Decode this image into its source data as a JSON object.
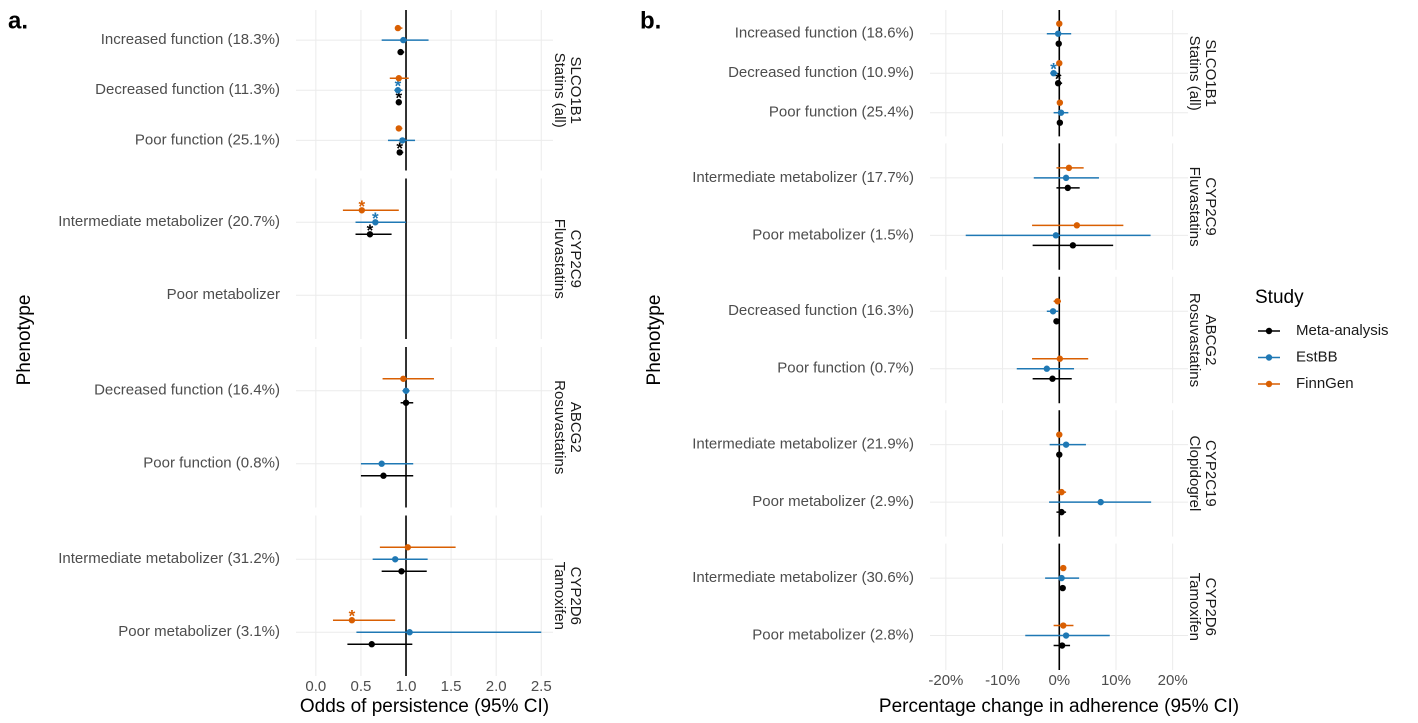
{
  "legend": {
    "title": "Study",
    "entries": [
      {
        "name": "Meta-analysis",
        "color": "#000000"
      },
      {
        "name": "EstBB",
        "color": "#1f78b4"
      },
      {
        "name": "FinnGen",
        "color": "#d95f02"
      }
    ]
  },
  "chart_data": [
    {
      "type": "forest",
      "panel_label": "a.",
      "xlabel": "Odds of persistence (95% CI)",
      "ylabel": "Phenotype",
      "xlim": [
        -0.22,
        2.63
      ],
      "xticks": [
        {
          "value": 0,
          "label": "0.0"
        },
        0.5,
        {
          "value": 1,
          "label": "1.0"
        },
        1.5,
        {
          "value": 2,
          "label": "2.0"
        },
        2.5
      ],
      "ref_line": 1,
      "grid": true,
      "facets": [
        {
          "gene": "SLCO1B1",
          "drug": "Statins (all)",
          "rows": [
            {
              "label": "Increased function (18.3%)",
              "points": [
                {
                  "est": 0.94,
                  "lo": 0.91,
                  "hi": 0.98
                },
                {
                  "est": 0.97,
                  "lo": 0.73,
                  "hi": 1.25
                },
                {
                  "est": 0.91,
                  "lo": 0.88,
                  "hi": 0.96
                }
              ]
            },
            {
              "label": "Decreased function (11.3%)",
              "points": [
                {
                  "est": 0.92,
                  "lo": 0.89,
                  "hi": 0.95,
                  "mark": "*"
                },
                {
                  "est": 0.91,
                  "lo": 0.87,
                  "hi": 0.96,
                  "mark": "*"
                },
                {
                  "est": 0.92,
                  "lo": 0.82,
                  "hi": 1.03
                }
              ]
            },
            {
              "label": "Poor function (25.1%)",
              "points": [
                {
                  "est": 0.93,
                  "lo": 0.9,
                  "hi": 0.97,
                  "mark": "*"
                },
                {
                  "est": 0.96,
                  "lo": 0.8,
                  "hi": 1.1
                },
                {
                  "est": 0.92,
                  "lo": 0.9,
                  "hi": 0.96
                }
              ]
            }
          ]
        },
        {
          "gene": "CYP2C9",
          "drug": "Fluvastatins",
          "rows": [
            {
              "label": "Intermediate metabolizer (20.7%)",
              "points": [
                {
                  "est": 0.6,
                  "lo": 0.44,
                  "hi": 0.84,
                  "mark": "*"
                },
                {
                  "est": 0.66,
                  "lo": 0.44,
                  "hi": 1.0,
                  "mark": "*"
                },
                {
                  "est": 0.51,
                  "lo": 0.3,
                  "hi": 0.92,
                  "mark": "*"
                }
              ]
            },
            {
              "label": "Poor metabolizer",
              "points": [
                null,
                null,
                null
              ]
            }
          ]
        },
        {
          "gene": "ABCG2",
          "drug": "Rosuvastatins",
          "rows": [
            {
              "label": "Decreased function (16.4%)",
              "points": [
                {
                  "est": 1.0,
                  "lo": 0.94,
                  "hi": 1.08
                },
                {
                  "est": 1.0,
                  "lo": 0.96,
                  "hi": 1.04
                },
                {
                  "est": 0.97,
                  "lo": 0.74,
                  "hi": 1.31
                }
              ]
            },
            {
              "label": "Poor function (0.8%)",
              "points": [
                {
                  "est": 0.75,
                  "lo": 0.5,
                  "hi": 1.08
                },
                {
                  "est": 0.73,
                  "lo": 0.5,
                  "hi": 1.08
                },
                null
              ]
            }
          ]
        },
        {
          "gene": "CYP2D6",
          "drug": "Tamoxifen",
          "rows": [
            {
              "label": "Intermediate metabolizer (31.2%)",
              "points": [
                {
                  "est": 0.95,
                  "lo": 0.73,
                  "hi": 1.23
                },
                {
                  "est": 0.88,
                  "lo": 0.63,
                  "hi": 1.24
                },
                {
                  "est": 1.02,
                  "lo": 0.71,
                  "hi": 1.55
                }
              ]
            },
            {
              "label": "Poor metabolizer (3.1%)",
              "points": [
                {
                  "est": 0.62,
                  "lo": 0.35,
                  "hi": 1.07
                },
                {
                  "est": 1.04,
                  "lo": 0.45,
                  "hi": 2.5
                },
                {
                  "est": 0.4,
                  "lo": 0.19,
                  "hi": 0.88,
                  "mark": "*"
                }
              ]
            }
          ]
        }
      ]
    },
    {
      "type": "forest",
      "panel_label": "b.",
      "xlabel": "Percentage change in adherence (95% CI)",
      "ylabel": "Phenotype",
      "xlim": [
        -22.8,
        22.7
      ],
      "xticks": [
        {
          "value": -20,
          "label": "-20%"
        },
        {
          "value": -10,
          "label": "-10%"
        },
        {
          "value": 0,
          "label": "0%"
        },
        {
          "value": 10,
          "label": "10%"
        },
        {
          "value": 20,
          "label": "20%"
        }
      ],
      "ref_line": 0,
      "grid": true,
      "facets": [
        {
          "gene": "SLCO1B1",
          "drug": "Statins (all)",
          "rows": [
            {
              "label": "Increased function (18.6%)",
              "points": [
                {
                  "est": -0.1,
                  "lo": -0.4,
                  "hi": 0.2
                },
                {
                  "est": -0.2,
                  "lo": -2.2,
                  "hi": 2.1
                },
                {
                  "est": 0,
                  "lo": -0.3,
                  "hi": 0.3
                }
              ]
            },
            {
              "label": "Decreased function (10.9%)",
              "points": [
                {
                  "est": -0.2,
                  "lo": -0.5,
                  "hi": 0.5,
                  "mark": "*"
                },
                {
                  "est": -1,
                  "lo": -1.6,
                  "hi": -0.3,
                  "mark": "*"
                },
                {
                  "est": 0,
                  "lo": -0.5,
                  "hi": 0.4
                }
              ]
            },
            {
              "label": "Poor function (25.4%)",
              "points": [
                {
                  "est": 0.1,
                  "lo": -0.2,
                  "hi": 0.4
                },
                {
                  "est": 0.3,
                  "lo": -1,
                  "hi": 1.6
                },
                {
                  "est": 0.1,
                  "lo": -0.2,
                  "hi": 0.4
                }
              ]
            }
          ]
        },
        {
          "gene": "CYP2C9",
          "drug": "Fluvastatins",
          "rows": [
            {
              "label": "Intermediate metabolizer (17.7%)",
              "points": [
                {
                  "est": 1.5,
                  "lo": -0.5,
                  "hi": 3.6
                },
                {
                  "est": 1.2,
                  "lo": -4.5,
                  "hi": 7
                },
                {
                  "est": 1.7,
                  "lo": -0.5,
                  "hi": 4.3
                }
              ]
            },
            {
              "label": "Poor metabolizer (1.5%)",
              "points": [
                {
                  "est": 2.4,
                  "lo": -4.7,
                  "hi": 9.5
                },
                {
                  "est": -0.6,
                  "lo": -16.5,
                  "hi": 16.1
                },
                {
                  "est": 3.1,
                  "lo": -4.8,
                  "hi": 11.3
                }
              ]
            }
          ]
        },
        {
          "gene": "ABCG2",
          "drug": "Rosuvastatins",
          "rows": [
            {
              "label": "Decreased function (16.3%)",
              "points": [
                {
                  "est": -0.5,
                  "lo": -0.9,
                  "hi": 0
                },
                {
                  "est": -1.1,
                  "lo": -2.2,
                  "hi": -0.2
                },
                {
                  "est": -0.3,
                  "lo": -1,
                  "hi": 0.3
                }
              ]
            },
            {
              "label": "Poor function (0.7%)",
              "points": [
                {
                  "est": -1.2,
                  "lo": -4.7,
                  "hi": 2.2
                },
                {
                  "est": -2.2,
                  "lo": -7.5,
                  "hi": 2.6
                },
                {
                  "est": 0.1,
                  "lo": -4.8,
                  "hi": 5.1
                }
              ]
            }
          ]
        },
        {
          "gene": "CYP2C19",
          "drug": "Clopidogrel",
          "rows": [
            {
              "label": "Intermediate metabolizer (21.9%)",
              "points": [
                {
                  "est": 0,
                  "lo": -0.3,
                  "hi": 0.3
                },
                {
                  "est": 1.2,
                  "lo": -1.7,
                  "hi": 4.7
                },
                {
                  "est": 0,
                  "lo": -0.3,
                  "hi": 0.3
                }
              ]
            },
            {
              "label": "Poor metabolizer (2.9%)",
              "points": [
                {
                  "est": 0.4,
                  "lo": -0.5,
                  "hi": 1.2
                },
                {
                  "est": 7.3,
                  "lo": -1.8,
                  "hi": 16.2
                },
                {
                  "est": 0.4,
                  "lo": -0.5,
                  "hi": 1.2
                }
              ]
            }
          ]
        },
        {
          "gene": "CYP2D6",
          "drug": "Tamoxifen",
          "rows": [
            {
              "label": "Intermediate metabolizer (30.6%)",
              "points": [
                {
                  "est": 0.6,
                  "lo": 0.2,
                  "hi": 1
                },
                {
                  "est": 0.4,
                  "lo": -2.5,
                  "hi": 3.5
                },
                {
                  "est": 0.7,
                  "lo": 0.3,
                  "hi": 1.1
                }
              ]
            },
            {
              "label": "Poor metabolizer (2.8%)",
              "points": [
                {
                  "est": 0.5,
                  "lo": -1,
                  "hi": 1.9
                },
                {
                  "est": 1.2,
                  "lo": -6,
                  "hi": 8.9
                },
                {
                  "est": 0.7,
                  "lo": -1,
                  "hi": 2.5
                }
              ]
            }
          ]
        }
      ]
    }
  ]
}
